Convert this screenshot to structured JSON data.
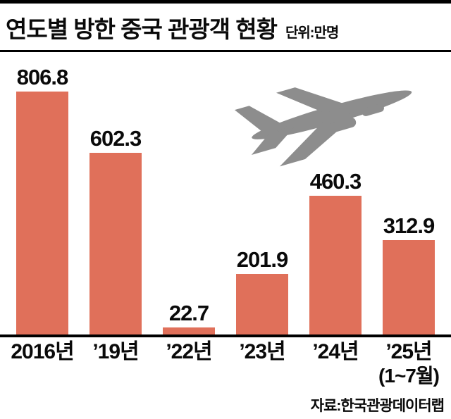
{
  "header": {
    "title": "연도별 방한 중국 관광객 현황",
    "unit": "단위:만명"
  },
  "chart_data": {
    "type": "bar",
    "title": "연도별 방한 중국 관광객 현황",
    "unit_label": "단위:만명",
    "categories": [
      "2016년",
      "’19년",
      "’22년",
      "’23년",
      "’24년",
      "’25년"
    ],
    "category_subnotes": [
      "",
      "",
      "",
      "",
      "",
      "(1~7월)"
    ],
    "values": [
      806.8,
      602.3,
      22.7,
      201.9,
      460.3,
      312.9
    ],
    "value_labels": [
      "806.8",
      "602.3",
      "22.7",
      "201.9",
      "460.3",
      "312.9"
    ],
    "ylim": [
      0,
      850
    ],
    "grid": false,
    "legend": "none",
    "bar_color": "#e0705a",
    "source": "자료:한국관광데이터랩"
  },
  "icons": {
    "plane": "airplane-icon",
    "plane_color": "#8d8d8d"
  },
  "footer": {
    "source": "자료:한국관광데이터랩"
  }
}
